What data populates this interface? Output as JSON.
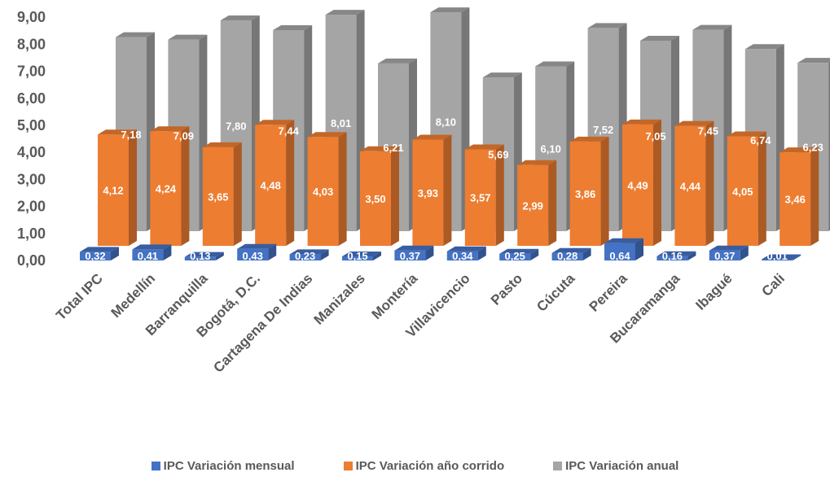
{
  "chart_data": {
    "type": "bar",
    "variant": "3d-clustered-column",
    "categories": [
      "Total IPC",
      "Medellín",
      "Barranquilla",
      "Bogotá, D.C.",
      "Cartagena De Indias",
      "Manizales",
      "Montería",
      "Villavicencio",
      "Pasto",
      "Cúcuta",
      "Pereira",
      "Bucaramanga",
      "Ibagué",
      "Cali"
    ],
    "series": [
      {
        "name": "IPC Variación mensual",
        "color": "#4472C4",
        "values": [
          0.32,
          0.41,
          0.13,
          0.43,
          0.23,
          0.15,
          0.37,
          0.34,
          0.25,
          0.28,
          0.64,
          0.16,
          0.37,
          0.01
        ],
        "labels": [
          "0,32",
          "0,41",
          "0,13",
          "0,43",
          "0,23",
          "0,15",
          "0,37",
          "0,34",
          "0,25",
          "0,28",
          "0,64",
          "0,16",
          "0,37",
          "0,01"
        ]
      },
      {
        "name": "IPC Variación año corrido",
        "color": "#ED7D31",
        "values": [
          4.12,
          4.24,
          3.65,
          4.48,
          4.03,
          3.5,
          3.93,
          3.57,
          2.99,
          3.86,
          4.49,
          4.44,
          4.05,
          3.46
        ],
        "labels": [
          "4,12",
          "4,24",
          "3,65",
          "4,48",
          "4,03",
          "3,50",
          "3,93",
          "3,57",
          "2,99",
          "3,86",
          "4,49",
          "4,44",
          "4,05",
          "3,46"
        ]
      },
      {
        "name": "IPC Variación anual",
        "color": "#A5A5A5",
        "values": [
          7.18,
          7.09,
          7.8,
          7.44,
          8.01,
          6.21,
          8.1,
          5.69,
          6.1,
          7.52,
          7.05,
          7.45,
          6.74,
          6.23
        ],
        "labels": [
          "7,18",
          "7,09",
          "7,80",
          "7,44",
          "8,01",
          "6,21",
          "8,10",
          "5,69",
          "6,10",
          "7,52",
          "7,05",
          "7,45",
          "6,74",
          "6,23"
        ]
      }
    ],
    "y_ticks": [
      "0,00",
      "1,00",
      "2,00",
      "3,00",
      "4,00",
      "5,00",
      "6,00",
      "7,00",
      "8,00",
      "9,00"
    ],
    "ylim": [
      0,
      9
    ],
    "grid": false,
    "legend_position": "bottom"
  }
}
